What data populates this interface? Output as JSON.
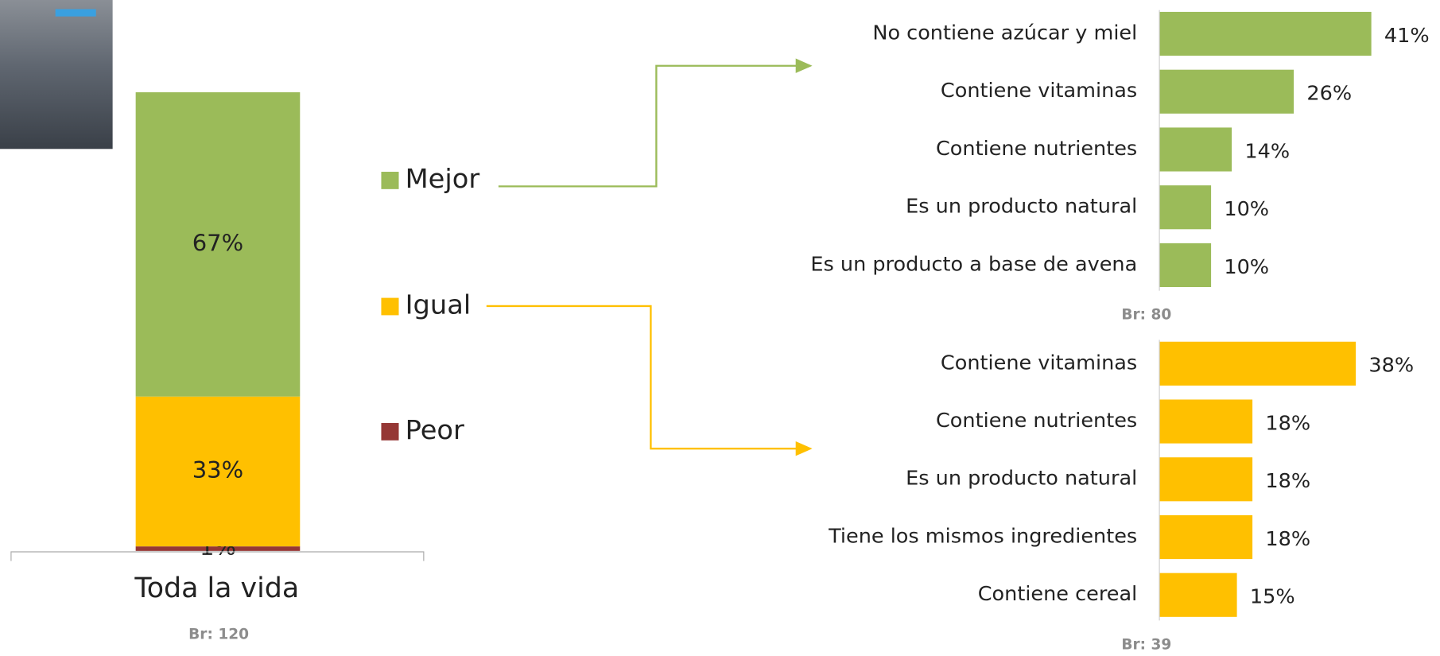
{
  "chart_data": [
    {
      "type": "stacked-bar",
      "categories": [
        "Toda la vida"
      ],
      "series": [
        {
          "name": "Mejor",
          "color": "#9bbb59",
          "values": [
            67
          ],
          "value_labels": [
            "67%"
          ]
        },
        {
          "name": "Igual",
          "color": "#ffc000",
          "values": [
            33
          ],
          "value_labels": [
            "33%"
          ]
        },
        {
          "name": "Peor",
          "color": "#953735",
          "values": [
            1
          ],
          "value_labels": [
            "1%"
          ]
        }
      ],
      "note": "Br: 120"
    },
    {
      "type": "hbar",
      "color": "#9bbb59",
      "categories": [
        "No contiene azúcar y miel",
        "Contiene vitaminas",
        "Contiene nutrientes",
        "Es un producto natural",
        "Es un producto a base de avena"
      ],
      "values": [
        41,
        26,
        14,
        10,
        10
      ],
      "value_labels": [
        "41%",
        "26%",
        "14%",
        "10%",
        "10%"
      ],
      "note": "Br: 80"
    },
    {
      "type": "hbar",
      "color": "#ffc000",
      "categories": [
        "Contiene vitaminas",
        "Contiene nutrientes",
        "Es un producto natural",
        "Tiene los mismos ingredientes",
        "Contiene cereal"
      ],
      "values": [
        38,
        18,
        18,
        18,
        15
      ],
      "value_labels": [
        "38%",
        "18%",
        "18%",
        "18%",
        "15%"
      ],
      "note": "Br: 39"
    }
  ]
}
